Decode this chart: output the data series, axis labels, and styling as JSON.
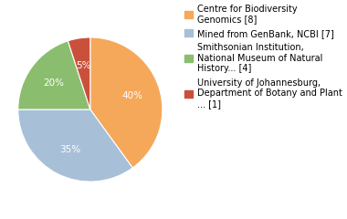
{
  "labels": [
    "Centre for Biodiversity\nGenomics [8]",
    "Mined from GenBank, NCBI [7]",
    "Smithsonian Institution,\nNational Museum of Natural\nHistory... [4]",
    "University of Johannesburg,\nDepartment of Botany and Plant\n... [1]"
  ],
  "values": [
    40,
    35,
    20,
    5
  ],
  "colors": [
    "#F5A85A",
    "#A8BFD8",
    "#8BBD6E",
    "#C9513C"
  ],
  "legend_labels": [
    "Centre for Biodiversity\nGenomics [8]",
    "Mined from GenBank, NCBI [7]",
    "Smithsonian Institution,\nNational Museum of Natural\nHistory... [4]",
    "University of Johannesburg,\nDepartment of Botany and Plant\n... [1]"
  ],
  "background_color": "#ffffff",
  "text_color": "#ffffff",
  "font_size": 7.5,
  "legend_font_size": 7.0,
  "startangle": 90,
  "pctdistance": 0.62
}
